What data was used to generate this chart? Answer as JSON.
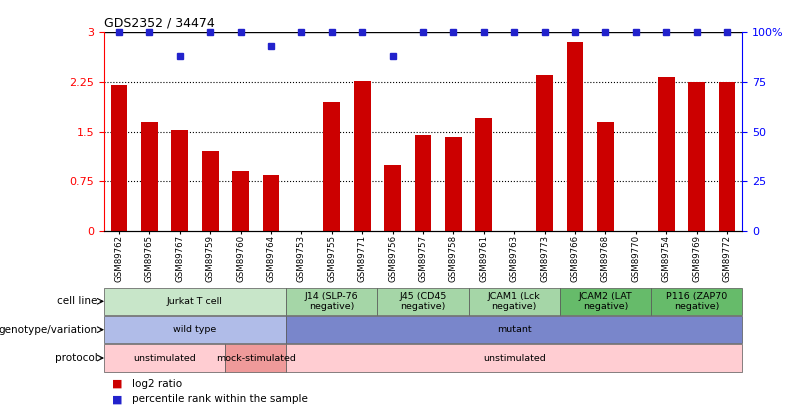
{
  "title": "GDS2352 / 34474",
  "samples": [
    "GSM89762",
    "GSM89765",
    "GSM89767",
    "GSM89759",
    "GSM89760",
    "GSM89764",
    "GSM89753",
    "GSM89755",
    "GSM89771",
    "GSM89756",
    "GSM89757",
    "GSM89758",
    "GSM89761",
    "GSM89763",
    "GSM89773",
    "GSM89766",
    "GSM89768",
    "GSM89770",
    "GSM89754",
    "GSM89769",
    "GSM89772"
  ],
  "log2_ratio": [
    2.2,
    1.65,
    1.52,
    1.2,
    0.9,
    0.85,
    0.0,
    1.95,
    2.27,
    1.0,
    1.45,
    1.42,
    1.7,
    0.0,
    2.35,
    2.85,
    1.65,
    0.0,
    2.32,
    2.25,
    2.25
  ],
  "percentile": [
    3.0,
    3.0,
    2.65,
    3.0,
    3.0,
    2.8,
    3.0,
    3.0,
    3.0,
    2.65,
    3.0,
    3.0,
    3.0,
    3.0,
    3.0,
    3.0,
    3.0,
    3.0,
    3.0,
    3.0,
    3.0
  ],
  "bar_color": "#cc0000",
  "dot_color": "#2222cc",
  "yticks_left": [
    0,
    0.75,
    1.5,
    2.25,
    3.0
  ],
  "ytick_labels_left": [
    "0",
    "0.75",
    "1.5",
    "2.25",
    "3"
  ],
  "yticks_right": [
    0,
    25,
    50,
    75,
    100
  ],
  "ytick_labels_right": [
    "0",
    "25",
    "50",
    "75",
    "100%"
  ],
  "cell_line_groups": [
    {
      "label": "Jurkat T cell",
      "start": 0,
      "end": 6,
      "color": "#c8e6c9"
    },
    {
      "label": "J14 (SLP-76\nnegative)",
      "start": 6,
      "end": 9,
      "color": "#a5d6a7"
    },
    {
      "label": "J45 (CD45\nnegative)",
      "start": 9,
      "end": 12,
      "color": "#a5d6a7"
    },
    {
      "label": "JCAM1 (Lck\nnegative)",
      "start": 12,
      "end": 15,
      "color": "#a5d6a7"
    },
    {
      "label": "JCAM2 (LAT\nnegative)",
      "start": 15,
      "end": 18,
      "color": "#66bb6a"
    },
    {
      "label": "P116 (ZAP70\nnegative)",
      "start": 18,
      "end": 21,
      "color": "#66bb6a"
    }
  ],
  "genotype_groups": [
    {
      "label": "wild type",
      "start": 0,
      "end": 6,
      "color": "#b0bce8"
    },
    {
      "label": "mutant",
      "start": 6,
      "end": 21,
      "color": "#7986cb"
    }
  ],
  "protocol_groups": [
    {
      "label": "unstimulated",
      "start": 0,
      "end": 4,
      "color": "#ffcdd2"
    },
    {
      "label": "mock-stimulated",
      "start": 4,
      "end": 6,
      "color": "#ef9a9a"
    },
    {
      "label": "unstimulated",
      "start": 6,
      "end": 21,
      "color": "#ffcdd2"
    }
  ],
  "row_labels": [
    "cell line",
    "genotype/variation",
    "protocol"
  ],
  "legend": [
    {
      "color": "#cc0000",
      "label": "log2 ratio"
    },
    {
      "color": "#2222cc",
      "label": "percentile rank within the sample"
    }
  ]
}
